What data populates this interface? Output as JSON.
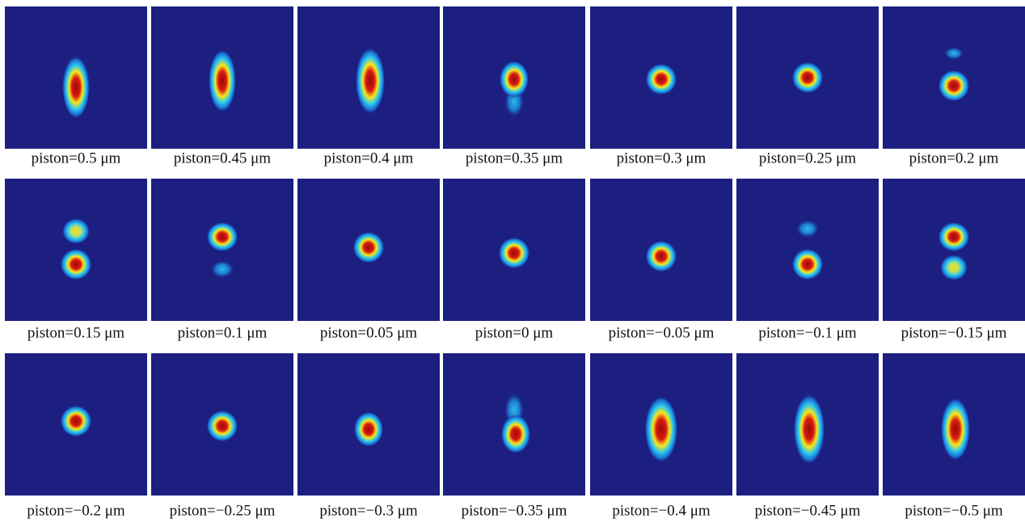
{
  "panels": [
    {
      "caption": "piston=0.5 μm"
    },
    {
      "caption": "piston=0.45 μm"
    },
    {
      "caption": "piston=0.4 μm"
    },
    {
      "caption": "piston=0.35 μm"
    },
    {
      "caption": "piston=0.3 μm"
    },
    {
      "caption": "piston=0.25 μm"
    },
    {
      "caption": "piston=0.2 μm"
    },
    {
      "caption": "piston=0.15 μm"
    },
    {
      "caption": "piston=0.1 μm"
    },
    {
      "caption": "piston=0.05 μm"
    },
    {
      "caption": "piston=0 μm"
    },
    {
      "caption": "piston=−0.05 μm"
    },
    {
      "caption": "piston=−0.1 μm"
    },
    {
      "caption": "piston=−0.15 μm"
    },
    {
      "caption": "piston=−0.2 μm"
    },
    {
      "caption": "piston=−0.25 μm"
    },
    {
      "caption": "piston=−0.3 μm"
    },
    {
      "caption": "piston=−0.35 μm"
    },
    {
      "caption": "piston=−0.4 μm"
    },
    {
      "caption": "piston=−0.45 μm"
    },
    {
      "caption": "piston=−0.5 μm"
    }
  ]
}
